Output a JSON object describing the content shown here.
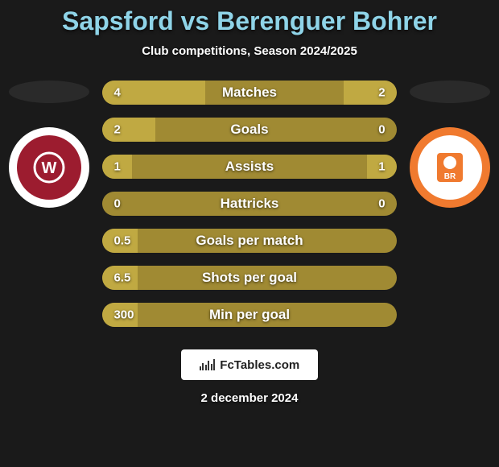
{
  "title_color": "#8fd4e8",
  "title": "Sapsford vs Berenguer Bohrer",
  "subtitle": "Club competitions, Season 2024/2025",
  "subtitle_color": "#ffffff",
  "background_color": "#1a1a1a",
  "text_color": "#ffffff",
  "bar_track_color": "#a08a33",
  "left_fill_color": "#c0a942",
  "right_fill_color": "#c0a942",
  "team_left": {
    "ellipse_color": "#2a2a2a",
    "crest_outer_bg": "#ffffff",
    "crest_inner_bg": "#9c1c2f",
    "crest_text_color": "#ffffff",
    "crest_initials": "W"
  },
  "team_right": {
    "ellipse_color": "#2a2a2a",
    "crest_outer_bg": "#f07a2f",
    "crest_inner_bg": "#ffffff",
    "crest_text_color": "#f07a2f",
    "crest_initials": "BR"
  },
  "stats": [
    {
      "label": "Matches",
      "left_text": "4",
      "right_text": "2",
      "left_fill_pct": 35,
      "right_fill_pct": 18
    },
    {
      "label": "Goals",
      "left_text": "2",
      "right_text": "0",
      "left_fill_pct": 18,
      "right_fill_pct": 0
    },
    {
      "label": "Assists",
      "left_text": "1",
      "right_text": "1",
      "left_fill_pct": 10,
      "right_fill_pct": 10
    },
    {
      "label": "Hattricks",
      "left_text": "0",
      "right_text": "0",
      "left_fill_pct": 0,
      "right_fill_pct": 0
    },
    {
      "label": "Goals per match",
      "left_text": "0.5",
      "right_text": "",
      "left_fill_pct": 12,
      "right_fill_pct": 0
    },
    {
      "label": "Shots per goal",
      "left_text": "6.5",
      "right_text": "",
      "left_fill_pct": 12,
      "right_fill_pct": 0
    },
    {
      "label": "Min per goal",
      "left_text": "300",
      "right_text": "",
      "left_fill_pct": 12,
      "right_fill_pct": 0
    }
  ],
  "footer_brand": "FcTables.com",
  "date_text": "2 december 2024"
}
